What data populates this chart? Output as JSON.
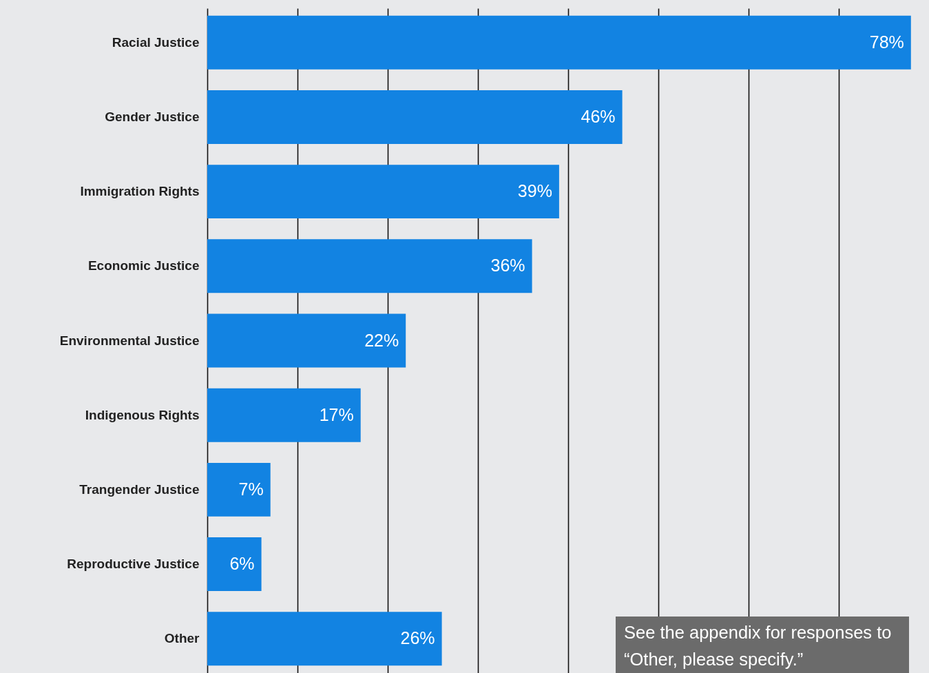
{
  "chart_data": {
    "type": "bar",
    "orientation": "horizontal",
    "categories": [
      "Racial Justice",
      "Gender Justice",
      "Immigration Rights",
      "Economic Justice",
      "Environmental Justice",
      "Indigenous Rights",
      "Trangender Justice",
      "Reproductive Justice",
      "Other"
    ],
    "values": [
      78,
      46,
      39,
      36,
      22,
      17,
      7,
      6,
      26
    ],
    "value_labels": [
      "78%",
      "46%",
      "39%",
      "36%",
      "22%",
      "17%",
      "7%",
      "6%",
      "26%"
    ],
    "color": "#1283e2",
    "xlim": [
      0,
      80
    ],
    "xticks": [
      {
        "value": 0,
        "label": null
      },
      {
        "value": 10,
        "label": null
      },
      {
        "value": 20,
        "label": null
      },
      {
        "value": 30,
        "label": null
      },
      {
        "value": 40,
        "label": null
      },
      {
        "value": 50,
        "label": null
      },
      {
        "value": 60,
        "label": null
      },
      {
        "value": 70,
        "label": null
      }
    ],
    "grid": "x",
    "tick_labels": "y",
    "annotations": [
      "See the appendix for responses to “Other, please specify.”"
    ]
  }
}
